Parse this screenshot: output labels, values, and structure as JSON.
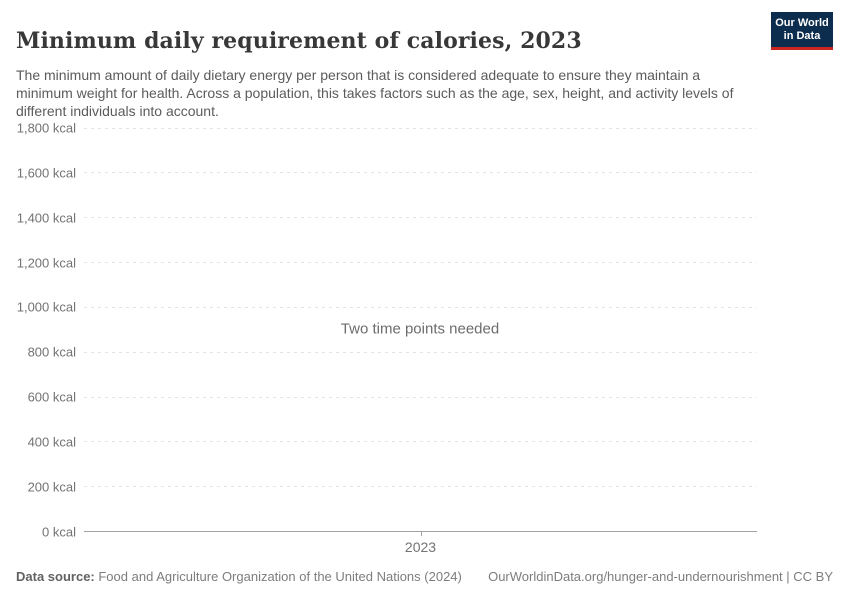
{
  "header": {
    "title": "Minimum daily requirement of calories, 2023",
    "subtitle": "The minimum amount of daily dietary energy per person that is considered adequate to ensure they maintain a minimum weight for health. Across a population, this takes factors such as the age, sex, height, and activity levels of different individuals into account.",
    "logo": {
      "line1": "Our World",
      "line2": "in Data",
      "bg_color": "#0d2d4e",
      "accent_color": "#cb2620"
    }
  },
  "chart_data": {
    "type": "line",
    "title": "Minimum daily requirement of calories, 2023",
    "series": [],
    "message": "Two time points needed",
    "xlabel": "",
    "ylabel": "",
    "x_tick_labels": [
      "2023"
    ],
    "y_ticks": [
      {
        "value": 0,
        "label": "0 kcal"
      },
      {
        "value": 200,
        "label": "200 kcal"
      },
      {
        "value": 400,
        "label": "400 kcal"
      },
      {
        "value": 600,
        "label": "600 kcal"
      },
      {
        "value": 800,
        "label": "800 kcal"
      },
      {
        "value": 1000,
        "label": "1,000 kcal"
      },
      {
        "value": 1200,
        "label": "1,200 kcal"
      },
      {
        "value": 1400,
        "label": "1,400 kcal"
      },
      {
        "value": 1600,
        "label": "1,600 kcal"
      },
      {
        "value": 1800,
        "label": "1,800 kcal"
      }
    ],
    "ylim": [
      0,
      1800
    ],
    "grid": "horizontal-dashed",
    "legend": "none",
    "colors": {
      "gridline": "#e3e3e3",
      "axis_line": "#a1a1a1",
      "tick_text": "#737373",
      "message_text": "#6c6c6c"
    }
  },
  "footer": {
    "datasource_label": "Data source:",
    "datasource_text": " Food and Agriculture Organization of the United Nations (2024)",
    "link_text": "OurWorldinData.org/hunger-and-undernourishment | CC BY"
  }
}
